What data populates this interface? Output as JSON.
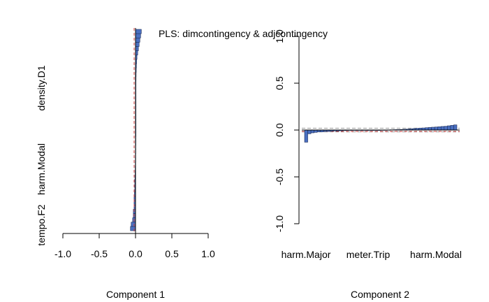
{
  "chart_data": {
    "title": "PLS: dimcontingency & adjcontingency",
    "colors": {
      "bar_fill": "#4a6fc0",
      "bar_stroke": "#1f2f5c",
      "zero_line": "#000000",
      "ref_dash": "#999999",
      "red_dash": "#d04040"
    },
    "panels": [
      {
        "type": "bar",
        "orientation": "horizontal",
        "xlabel": "Component 1",
        "xlim": [
          -1.0,
          1.0
        ],
        "xticks": [
          "-1.0",
          "-0.5",
          "0.0",
          "0.5",
          "1.0"
        ],
        "xtick_values": [
          -1.0,
          -0.5,
          0.0,
          0.5,
          1.0
        ],
        "category_labels": [
          "tempo.F2",
          "harm.Modal",
          "density.D1"
        ],
        "values": [
          -0.07,
          -0.06,
          -0.04,
          -0.03,
          -0.03,
          -0.02,
          -0.02,
          -0.02,
          -0.015,
          -0.01,
          -0.01,
          -0.01,
          -0.008,
          -0.006,
          -0.005,
          -0.004,
          -0.003,
          -0.003,
          -0.002,
          -0.002,
          -0.001,
          -0.001,
          0.0,
          0.0,
          0.0,
          0.0,
          0.001,
          0.001,
          0.002,
          0.002,
          0.003,
          0.003,
          0.004,
          0.005,
          0.006,
          0.007,
          0.008,
          0.01,
          0.012,
          0.015,
          0.02,
          0.03,
          0.04,
          0.05,
          0.06,
          0.07,
          0.08
        ]
      },
      {
        "type": "bar",
        "orientation": "vertical",
        "xlabel": "Component 2",
        "ylim": [
          -1.0,
          1.0
        ],
        "yticks": [
          "-1.0",
          "-0.5",
          "0.0",
          "0.5",
          "1.0"
        ],
        "ytick_values": [
          -1.0,
          -0.5,
          0.0,
          0.5,
          1.0
        ],
        "category_labels": [
          "harm.Major",
          "meter.Trip",
          "harm.Modal"
        ],
        "values": [
          -0.13,
          -0.04,
          -0.03,
          -0.025,
          -0.02,
          -0.02,
          -0.015,
          -0.015,
          -0.012,
          -0.01,
          -0.01,
          -0.008,
          -0.006,
          -0.005,
          -0.004,
          -0.003,
          -0.002,
          -0.002,
          -0.001,
          -0.001,
          0.0,
          0.0,
          0.0,
          0.0,
          0.001,
          0.001,
          0.002,
          0.003,
          0.004,
          0.005,
          0.006,
          0.008,
          0.01,
          0.012,
          0.015,
          0.018,
          0.02,
          0.022,
          0.025,
          0.028,
          0.03,
          0.032,
          0.035,
          0.038,
          0.04,
          0.045,
          0.05,
          0.055
        ]
      }
    ]
  }
}
